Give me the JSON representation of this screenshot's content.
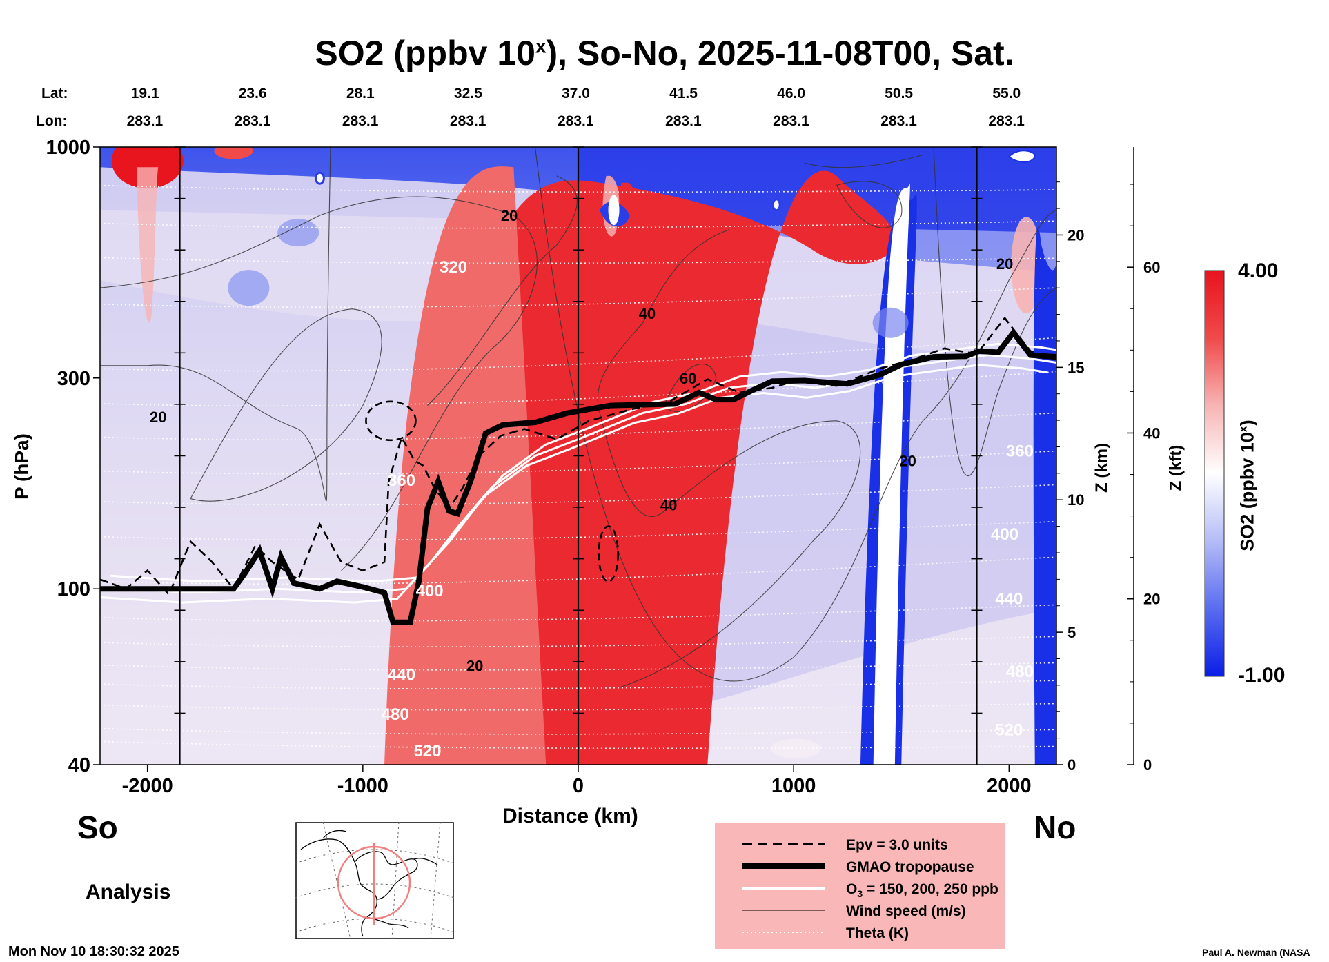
{
  "chart_data": {
    "type": "heatmap",
    "title": "SO2 (ppbv 10ˣ), So-No, 2025-11-08T00, Sat.",
    "title_main": "SO2 (ppbv 10",
    "title_sup": "x",
    "title_rest": "), So-No, 2025-11-08T00, Sat.",
    "lat_label": "Lat:",
    "lon_label": "Lon:",
    "lats": [
      "19.1",
      "23.6",
      "28.1",
      "32.5",
      "37.0",
      "41.5",
      "46.0",
      "50.5",
      "55.0"
    ],
    "lons": [
      "283.1",
      "283.1",
      "283.1",
      "283.1",
      "283.1",
      "283.1",
      "283.1",
      "283.1",
      "283.1"
    ],
    "xlabel": "Distance (km)",
    "ylabel": "P (hPa)",
    "z_km_label": "Z (km)",
    "z_kft_label": "Z (kft)",
    "xlim": [
      -2220,
      2220
    ],
    "ylim": [
      1000,
      40
    ],
    "x_ticks": [
      -2000,
      -1000,
      0,
      1000,
      2000
    ],
    "x_tick_labels": [
      "-2000",
      "-1000",
      "0",
      "1000",
      "2000"
    ],
    "p_ticks": [
      40,
      100,
      300,
      1000
    ],
    "p_tick_labels": [
      "40",
      "100",
      "300",
      "1000"
    ],
    "z_km_ticks": [
      0,
      5,
      10,
      15,
      20
    ],
    "z_km_tick_labels": [
      "0",
      "5",
      "10",
      "15",
      "20"
    ],
    "z_kft_ticks": [
      0,
      20,
      40,
      60
    ],
    "z_kft_tick_labels": [
      "0",
      "20",
      "40",
      "60"
    ],
    "vertical_markers_km": [
      -1850,
      0,
      1850
    ],
    "left_end_label": "So",
    "right_end_label": "No",
    "colorbar": {
      "max_label": "4.00",
      "min_label": "-1.00",
      "max": 4.0,
      "min": -1.0,
      "label_main": "SO2 (ppbv 10",
      "label_sup": "x",
      "label_rest": ")",
      "colors": [
        "#0a1ee6",
        "#5a6cf0",
        "#b4bcf6",
        "#ffffff",
        "#f7b4b4",
        "#f04a4a",
        "#e8141e"
      ]
    },
    "theta_levels": [
      {
        "label": "520",
        "x": -700,
        "p": 43
      },
      {
        "label": "480",
        "x": -850,
        "p": 52
      },
      {
        "label": "440",
        "x": -820,
        "p": 64
      },
      {
        "label": "400",
        "x": -690,
        "p": 99
      },
      {
        "label": "360",
        "x": -820,
        "p": 176
      },
      {
        "label": "320",
        "x": -580,
        "p": 535
      },
      {
        "label": "520",
        "x": 2000,
        "p": 48
      },
      {
        "label": "480",
        "x": 2050,
        "p": 65
      },
      {
        "label": "440",
        "x": 2000,
        "p": 95
      },
      {
        "label": "400",
        "x": 1980,
        "p": 133
      },
      {
        "label": "360",
        "x": 2050,
        "p": 205
      }
    ],
    "wind_labels": [
      {
        "label": "20",
        "x": -480,
        "p": 67
      },
      {
        "label": "40",
        "x": 420,
        "p": 155
      },
      {
        "label": "20",
        "x": 1530,
        "p": 195
      },
      {
        "label": "20",
        "x": -1950,
        "p": 245
      },
      {
        "label": "60",
        "x": 510,
        "p": 300
      },
      {
        "label": "40",
        "x": 320,
        "p": 420
      },
      {
        "label": "20",
        "x": -320,
        "p": 700
      },
      {
        "label": "20",
        "x": 1980,
        "p": 545
      }
    ],
    "tropopause_p": [
      [
        -2220,
        100
      ],
      [
        -1600,
        100
      ],
      [
        -1550,
        108
      ],
      [
        -1480,
        122
      ],
      [
        -1420,
        100
      ],
      [
        -1380,
        118
      ],
      [
        -1320,
        103
      ],
      [
        -1200,
        100
      ],
      [
        -1120,
        104
      ],
      [
        -1000,
        101
      ],
      [
        -900,
        98
      ],
      [
        -860,
        84
      ],
      [
        -780,
        84
      ],
      [
        -740,
        104
      ],
      [
        -700,
        152
      ],
      [
        -650,
        175
      ],
      [
        -600,
        150
      ],
      [
        -560,
        148
      ],
      [
        -500,
        175
      ],
      [
        -430,
        225
      ],
      [
        -350,
        235
      ],
      [
        -200,
        238
      ],
      [
        -50,
        250
      ],
      [
        150,
        260
      ],
      [
        450,
        262
      ],
      [
        560,
        278
      ],
      [
        640,
        268
      ],
      [
        720,
        268
      ],
      [
        800,
        280
      ],
      [
        900,
        295
      ],
      [
        1050,
        296
      ],
      [
        1250,
        291
      ],
      [
        1400,
        305
      ],
      [
        1500,
        322
      ],
      [
        1650,
        335
      ],
      [
        1800,
        336
      ],
      [
        1860,
        345
      ],
      [
        1950,
        343
      ],
      [
        2020,
        380
      ],
      [
        2100,
        338
      ],
      [
        2220,
        335
      ]
    ],
    "epv_p": [
      [
        -2220,
        105
      ],
      [
        -2100,
        100
      ],
      [
        -2000,
        110
      ],
      [
        -1900,
        97
      ],
      [
        -1800,
        128
      ],
      [
        -1700,
        115
      ],
      [
        -1600,
        100
      ],
      [
        -1500,
        125
      ],
      [
        -1420,
        115
      ],
      [
        -1300,
        105
      ],
      [
        -1200,
        140
      ],
      [
        -1100,
        115
      ],
      [
        -1000,
        110
      ],
      [
        -900,
        115
      ],
      [
        -880,
        175
      ],
      [
        -820,
        220
      ],
      [
        -760,
        195
      ],
      [
        -720,
        190
      ],
      [
        -670,
        170
      ],
      [
        -600,
        152
      ],
      [
        -540,
        168
      ],
      [
        -460,
        200
      ],
      [
        -360,
        222
      ],
      [
        -250,
        230
      ],
      [
        -100,
        218
      ],
      [
        50,
        240
      ],
      [
        250,
        255
      ],
      [
        420,
        265
      ],
      [
        600,
        298
      ],
      [
        750,
        278
      ],
      [
        900,
        285
      ],
      [
        1000,
        295
      ],
      [
        1200,
        288
      ],
      [
        1400,
        315
      ],
      [
        1550,
        330
      ],
      [
        1700,
        350
      ],
      [
        1850,
        340
      ],
      [
        1980,
        410
      ],
      [
        2100,
        345
      ],
      [
        2220,
        330
      ]
    ],
    "ozone_p": [
      [
        -2220,
        101
      ],
      [
        -1800,
        98
      ],
      [
        -1400,
        100
      ],
      [
        -1000,
        98
      ],
      [
        -800,
        100
      ],
      [
        -650,
        120
      ],
      [
        -520,
        145
      ],
      [
        -400,
        170
      ],
      [
        -200,
        200
      ],
      [
        0,
        218
      ],
      [
        300,
        250
      ],
      [
        500,
        262
      ],
      [
        700,
        285
      ],
      [
        900,
        292
      ],
      [
        1100,
        285
      ],
      [
        1300,
        295
      ],
      [
        1500,
        318
      ],
      [
        1700,
        328
      ],
      [
        1900,
        338
      ],
      [
        2100,
        332
      ],
      [
        2220,
        325
      ]
    ],
    "legend": [
      {
        "style": "dashed",
        "label": "Epv = 3.0 units"
      },
      {
        "style": "thick",
        "label": "GMAO tropopause"
      },
      {
        "style": "white",
        "label_main": "O",
        "label_sub": "3",
        "label_rest": " = 150, 200, 250 ppb"
      },
      {
        "style": "thin",
        "label": "Wind speed (m/s)"
      },
      {
        "style": "dotted",
        "label": "Theta (K)"
      }
    ]
  },
  "footer": {
    "analysis": "Analysis",
    "timestamp": "Mon Nov 10 18:30:32 2025",
    "credit": "Paul A. Newman (NASA"
  }
}
